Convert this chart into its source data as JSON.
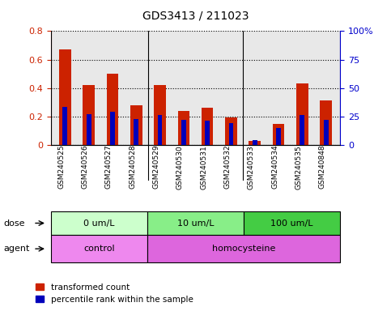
{
  "title": "GDS3413 / 211023",
  "samples": [
    "GSM240525",
    "GSM240526",
    "GSM240527",
    "GSM240528",
    "GSM240529",
    "GSM240530",
    "GSM240531",
    "GSM240532",
    "GSM240533",
    "GSM240534",
    "GSM240535",
    "GSM240848"
  ],
  "red_values": [
    0.67,
    0.42,
    0.5,
    0.28,
    0.42,
    0.24,
    0.26,
    0.19,
    0.03,
    0.15,
    0.43,
    0.31
  ],
  "blue_values": [
    33,
    27,
    29,
    23,
    26,
    22,
    21,
    19,
    4,
    15,
    26,
    22
  ],
  "ylim_left": [
    0,
    0.8
  ],
  "ylim_right": [
    0,
    100
  ],
  "yticks_left": [
    0,
    0.2,
    0.4,
    0.6,
    0.8
  ],
  "yticks_right": [
    0,
    25,
    50,
    75,
    100
  ],
  "ytick_labels_left": [
    "0",
    "0.2",
    "0.4",
    "0.6",
    "0.8"
  ],
  "ytick_labels_right": [
    "0",
    "25",
    "50",
    "75",
    "100%"
  ],
  "left_axis_color": "#cc2200",
  "right_axis_color": "#0000cc",
  "red_bar_color": "#cc2200",
  "blue_bar_color": "#0000bb",
  "dose_groups": [
    {
      "label": "0 um/L",
      "start": 0,
      "end": 4,
      "color": "#ccffcc"
    },
    {
      "label": "10 um/L",
      "start": 4,
      "end": 8,
      "color": "#88ee88"
    },
    {
      "label": "100 um/L",
      "start": 8,
      "end": 12,
      "color": "#44cc44"
    }
  ],
  "agent_groups": [
    {
      "label": "control",
      "start": 0,
      "end": 4,
      "color": "#ee88ee"
    },
    {
      "label": "homocysteine",
      "start": 4,
      "end": 12,
      "color": "#dd66dd"
    }
  ],
  "dose_label": "dose",
  "agent_label": "agent",
  "legend_red": "transformed count",
  "legend_blue": "percentile rank within the sample",
  "background_color": "#e8e8e8",
  "bar_width": 0.5,
  "blue_bar_width": 0.2
}
